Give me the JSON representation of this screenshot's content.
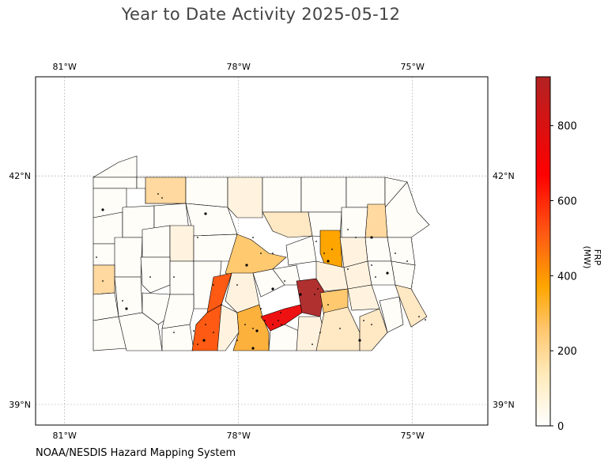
{
  "title": "Year to Date Activity 2025-05-12",
  "credit": "NOAA/NESDIS Hazard Mapping System",
  "map": {
    "region": "Pennsylvania",
    "lon_ticks": [
      {
        "lon": -81,
        "label": "81°W"
      },
      {
        "lon": -78,
        "label": "78°W"
      },
      {
        "lon": -75,
        "label": "75°W"
      }
    ],
    "lat_ticks": [
      {
        "lat": 42,
        "label": "42°N"
      },
      {
        "lat": 39,
        "label": "39°N"
      }
    ],
    "extent": {
      "lon_min": -81.5,
      "lon_max": -73.7,
      "lat_min": 38.73,
      "lat_max": 43.3
    },
    "gridlines": true
  },
  "colorbar": {
    "label": "FRP (MW)",
    "ticks": [
      0,
      200,
      400,
      600,
      800
    ],
    "range": [
      0,
      930
    ],
    "colormap": [
      "#ffffff",
      "#ffe9b8",
      "#ffc56b",
      "#ffa500",
      "#ff5a14",
      "#ff0000",
      "#b22222"
    ]
  },
  "legend_colors": {
    "none": "#fffdf8",
    "very_low": "#fff3e0",
    "low": "#ffe8c4",
    "low_mid": "#ffd9a0",
    "mid": "#ffc970",
    "mid_high": "#fbb13c",
    "high": "#ffa500",
    "very_high": "#ff5a14",
    "severe": "#ee1111",
    "extreme": "#b03030"
  }
}
